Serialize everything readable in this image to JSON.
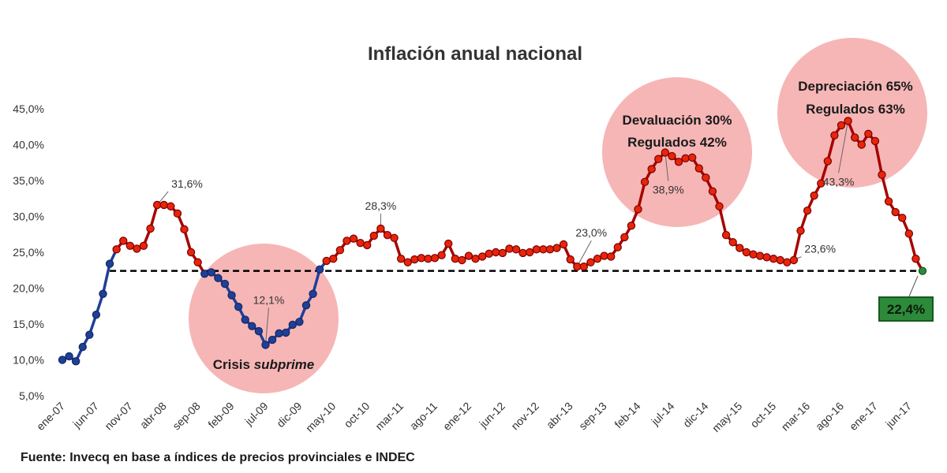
{
  "chart_data": {
    "type": "line",
    "title": "Inflación anual nacional",
    "source": "Fuente: Invecq en base a índices de precios provinciales e INDEC",
    "ylim": [
      5,
      45
    ],
    "yticks": [
      "5,0%",
      "10,0%",
      "15,0%",
      "20,0%",
      "25,0%",
      "30,0%",
      "35,0%",
      "40,0%",
      "45,0%"
    ],
    "xticks": [
      "ene-07",
      "jun-07",
      "nov-07",
      "abr-08",
      "sep-08",
      "feb-09",
      "jul-09",
      "dic-09",
      "may-10",
      "oct-10",
      "mar-11",
      "ago-11",
      "ene-12",
      "jun-12",
      "nov-12",
      "abr-13",
      "sep-13",
      "feb-14",
      "jul-14",
      "dic-14",
      "may-15",
      "oct-15",
      "mar-16",
      "ago-16",
      "ene-17",
      "jun-17"
    ],
    "grid": false,
    "reference_line": 22.4,
    "colors": {
      "blue": "#1f3f9a",
      "red": "#cc0000",
      "green": "#2d8a3a",
      "circle": "#f4a9a9"
    },
    "series": [
      {
        "values": [
          10.0,
          10.5,
          9.8,
          11.8,
          13.5,
          16.3,
          19.2,
          23.4,
          25.4,
          26.6,
          25.9,
          25.5,
          25.9,
          28.3,
          31.6,
          31.6,
          31.4,
          30.4,
          28.2,
          25.0,
          23.6,
          22.0,
          22.2,
          21.4,
          20.6,
          19.0,
          17.4,
          15.6,
          14.7,
          14.0,
          12.1,
          12.8,
          13.7,
          13.8,
          14.9,
          15.3,
          17.6,
          19.2,
          22.6,
          23.8,
          24.1,
          25.3,
          26.6,
          26.9,
          26.3,
          26.0,
          27.3,
          28.3,
          27.4,
          27.0,
          24.1,
          23.6,
          24.0,
          24.2,
          24.1,
          24.2,
          24.6,
          26.2,
          24.1,
          23.9,
          24.5,
          24.1,
          24.4,
          24.8,
          25.0,
          24.9,
          25.5,
          25.4,
          24.9,
          25.0,
          25.4,
          25.4,
          25.4,
          25.6,
          26.1,
          24.0,
          23.0,
          23.0,
          23.6,
          24.1,
          24.5,
          24.4,
          25.7,
          27.1,
          28.7,
          31.0,
          34.8,
          36.6,
          38.0,
          38.9,
          38.4,
          37.6,
          38.1,
          38.2,
          36.7,
          35.4,
          33.5,
          31.4,
          27.4,
          26.4,
          25.6,
          25.0,
          24.7,
          24.5,
          24.3,
          24.1,
          23.9,
          23.6,
          23.9,
          28.0,
          30.8,
          32.9,
          34.6,
          37.7,
          41.3,
          42.7,
          43.3,
          41.0,
          40.0,
          41.5,
          40.5,
          35.8,
          32.1,
          30.6,
          29.8,
          27.6,
          24.1,
          22.4
        ]
      }
    ],
    "data_labels": [
      {
        "text": "31,6%",
        "index": 14
      },
      {
        "text": "12,1%",
        "index": 30
      },
      {
        "text": "28,3%",
        "index": 47
      },
      {
        "text": "23,0%",
        "index": 76
      },
      {
        "text": "38,9%",
        "index": 89
      },
      {
        "text": "23,6%",
        "index": 107
      },
      {
        "text": "43,3%",
        "index": 116
      }
    ],
    "final_label": "22,4%",
    "annotations": [
      {
        "lines": [
          "Crisis ",
          "subprime"
        ]
      },
      {
        "lines": [
          "Devaluación 30%",
          "Regulados 42%"
        ]
      },
      {
        "lines": [
          "Depreciación 65%",
          "Regulados 63%"
        ]
      }
    ]
  }
}
